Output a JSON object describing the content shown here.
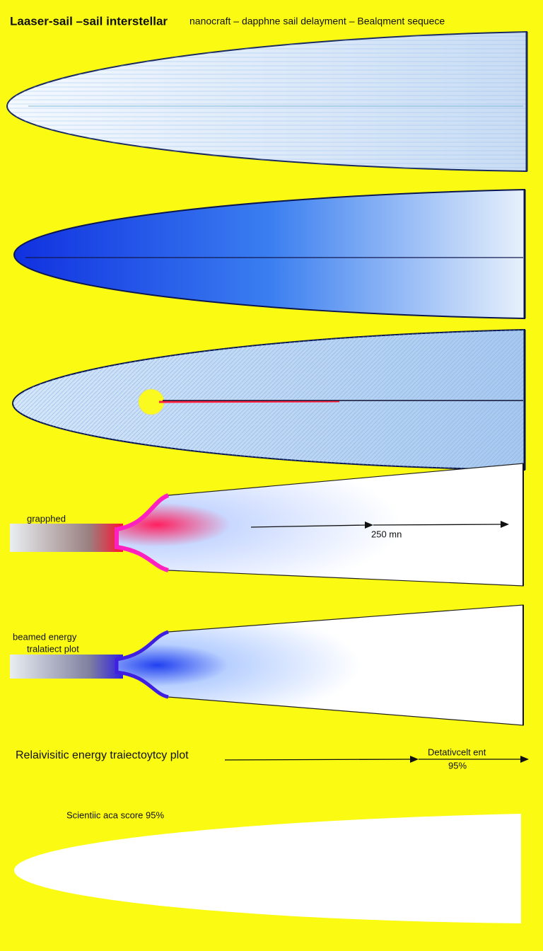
{
  "header": {
    "title_bold": "Laaser-sail –sail interstellar",
    "title_rest": "nanocraft – dapphne sail delayment – Bealqment sequece"
  },
  "panels": [
    {
      "label": "grapphed",
      "measure": "250 mn"
    },
    {
      "label_line1": "beamed energy",
      "label_line2": "tralatiect plot"
    }
  ],
  "trajectory": {
    "label": "Relaivisitic energy traiectoytcy plot",
    "note_line1": "Detativcelt ent",
    "note_line2": "95%"
  },
  "footer": {
    "score": "Scientiic aca score 95%"
  }
}
